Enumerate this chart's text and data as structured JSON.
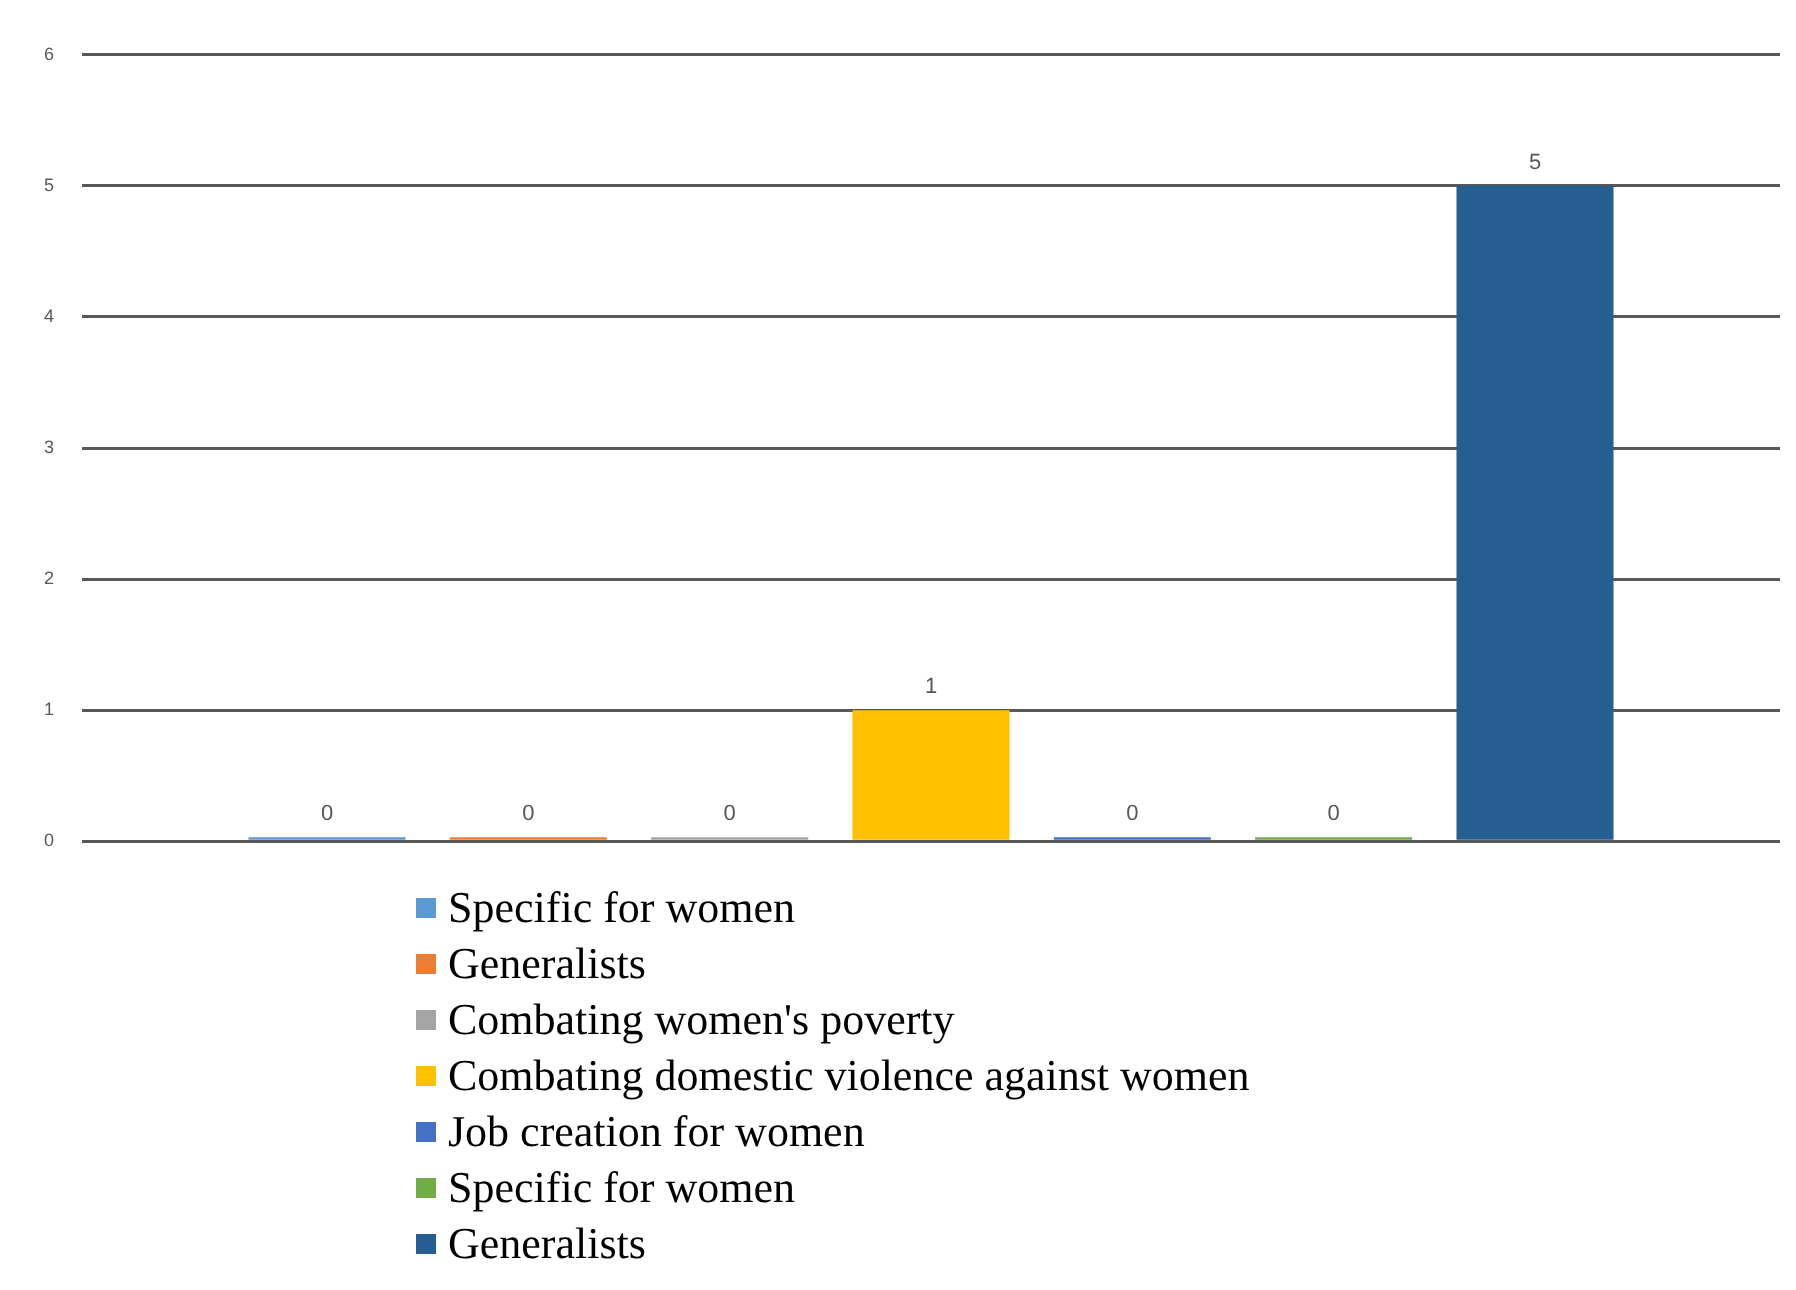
{
  "chart_data": {
    "type": "bar",
    "categories": [
      null
    ],
    "series": [
      {
        "name": "Specific for women",
        "color": "#5b9bd5",
        "values": [
          0
        ]
      },
      {
        "name": "Generalists",
        "color": "#ed7d31",
        "values": [
          0
        ]
      },
      {
        "name": "Combating women's poverty",
        "color": "#a5a5a5",
        "values": [
          0
        ]
      },
      {
        "name": "Combating domestic violence against women",
        "color": "#ffc000",
        "values": [
          1
        ]
      },
      {
        "name": "Job creation for women",
        "color": "#4472c4",
        "values": [
          0
        ]
      },
      {
        "name": "Specific for women",
        "color": "#70ad47",
        "values": [
          0
        ]
      },
      {
        "name": "Generalists",
        "color": "#255e91",
        "values": [
          5
        ]
      }
    ],
    "ylim": [
      0,
      6
    ],
    "yticks": [
      0,
      1,
      2,
      3,
      4,
      5,
      6
    ],
    "grid": "y",
    "legend": "bottom",
    "data_labels": true
  }
}
